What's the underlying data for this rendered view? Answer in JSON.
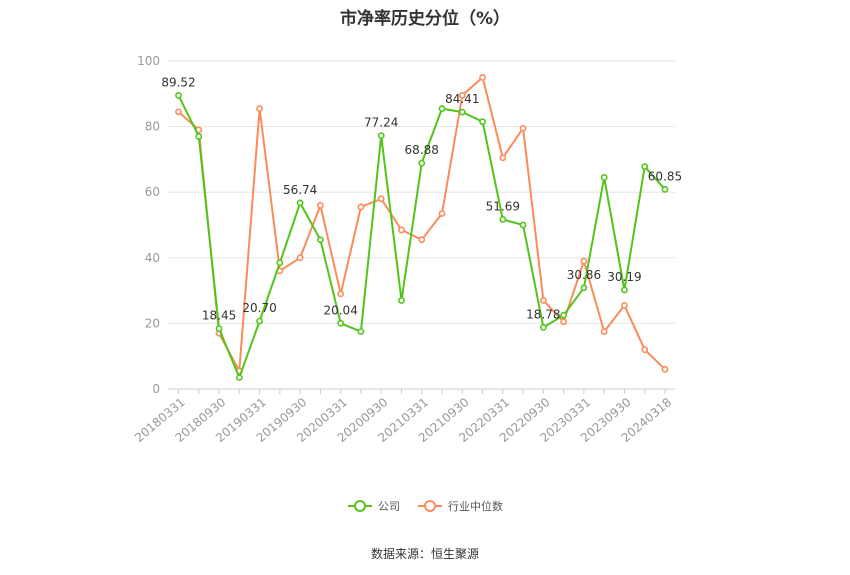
{
  "page": {
    "title": "市净率历史分位（%）",
    "source": "数据来源：恒生聚源"
  },
  "chart_data": {
    "type": "line",
    "title": "市净率历史分位（%）",
    "xlabel": "",
    "ylabel": "",
    "ylim": [
      0,
      100
    ],
    "yticks": [
      0,
      20,
      40,
      60,
      80,
      100
    ],
    "grid": true,
    "legend": "bottom",
    "x": [
      "20180331",
      "20180630",
      "20180930",
      "20181231",
      "20190331",
      "20190630",
      "20190930",
      "20191231",
      "20200331",
      "20200630",
      "20200930",
      "20201231",
      "20210331",
      "20210630",
      "20210930",
      "20211231",
      "20220331",
      "20220630",
      "20220930",
      "20221231",
      "20230331",
      "20230630",
      "20230930",
      "20231231",
      "20240318"
    ],
    "x_tick_labels": [
      "20180331",
      "20180930",
      "20190331",
      "20190930",
      "20200331",
      "20200930",
      "20210331",
      "20210930",
      "20220331",
      "20220930",
      "20230331",
      "20230930",
      "20240318"
    ],
    "series": [
      {
        "name": "公司",
        "color": "#52c41a",
        "values": [
          89.52,
          77,
          18.45,
          3.5,
          20.7,
          38.5,
          56.74,
          45.5,
          20.04,
          17.5,
          77.24,
          27,
          68.88,
          85.5,
          84.41,
          81.5,
          51.69,
          50,
          18.78,
          22.5,
          30.86,
          64.5,
          30.19,
          67.8,
          60.85
        ],
        "labels": {
          "0": "89.52",
          "2": "18.45",
          "4": "20.70",
          "6": "56.74",
          "8": "20.04",
          "10": "77.24",
          "12": "68.88",
          "14": "84.41",
          "16": "51.69",
          "18": "18.78",
          "20": "30.86",
          "22": "30.19",
          "24": "60.85"
        }
      },
      {
        "name": "行业中位数",
        "color": "#fa8c5a",
        "values": [
          84.5,
          79,
          17,
          5.5,
          85.5,
          36,
          40,
          56,
          29,
          55.5,
          58,
          48.5,
          45.5,
          53.5,
          89.5,
          95,
          70.5,
          79.5,
          27,
          20.5,
          39,
          17.5,
          25.5,
          12,
          6
        ]
      }
    ]
  }
}
